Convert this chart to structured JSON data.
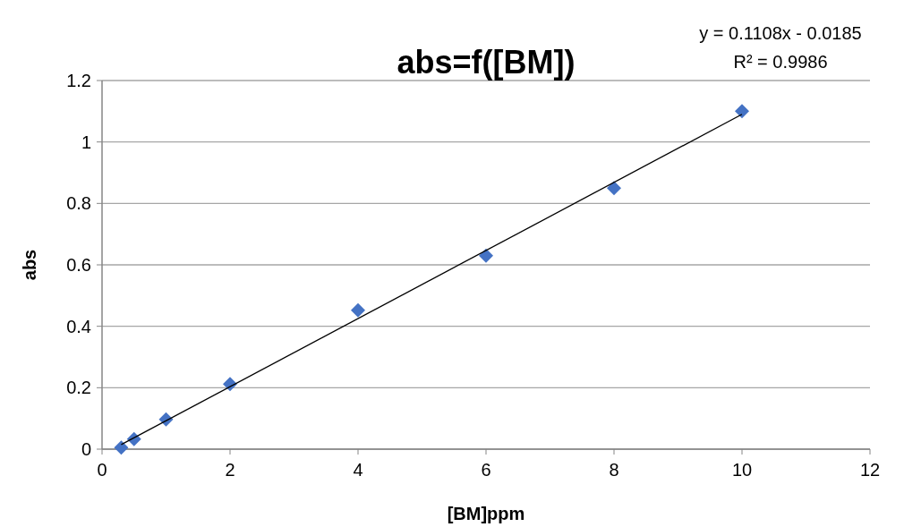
{
  "chart_data": {
    "type": "scatter",
    "title": "abs=f([BM])",
    "xlabel": "[BM]ppm",
    "ylabel": "abs",
    "x": [
      0.3,
      0.5,
      1,
      2,
      4,
      6,
      8,
      10
    ],
    "series": [
      {
        "color": "#4472c4",
        "marker": "diamond",
        "values": [
          0.005,
          0.033,
          0.097,
          0.212,
          0.452,
          0.63,
          0.85,
          1.1
        ]
      },
      {
        "type": "line",
        "color": "#000000",
        "marker": "none",
        "x": [
          0.3,
          10
        ],
        "values": [
          0.015,
          1.09
        ]
      }
    ],
    "annotations": [
      "y = 0.1108x - 0.0185",
      "R² = 0.9986"
    ],
    "xlim": [
      0,
      12
    ],
    "xticks": [
      0,
      2,
      4,
      6,
      8,
      10,
      12
    ],
    "ylim": [
      0,
      1.2
    ],
    "yticks": [
      0,
      0.2,
      0.4,
      0.6,
      0.8,
      1,
      1.2
    ],
    "grid": "y"
  }
}
